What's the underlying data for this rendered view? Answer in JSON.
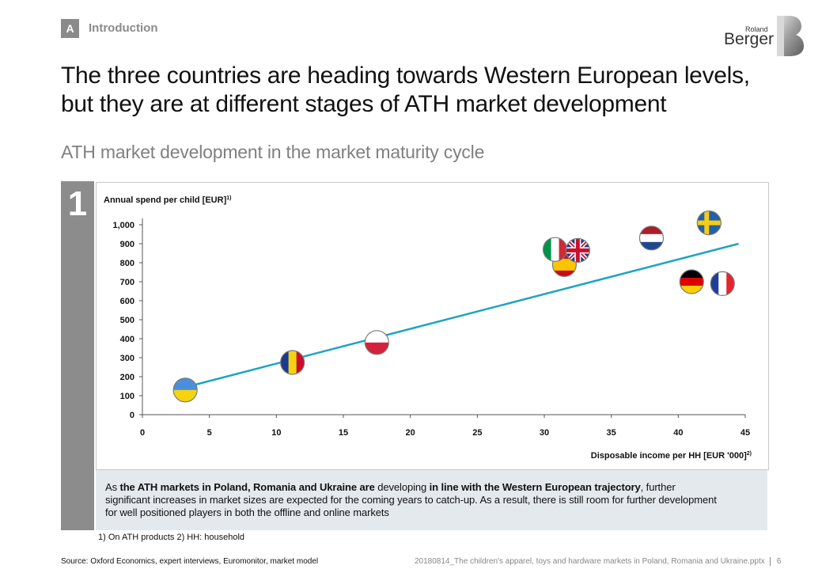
{
  "section": {
    "badge": "A",
    "label": "Introduction"
  },
  "logo": {
    "line1": "Roland",
    "line2": "Berger"
  },
  "headline": {
    "line1": "The three countries are heading towards Western European levels,",
    "line2": "but they are at different stages of ATH market development"
  },
  "subtitle": "ATH market development in the market maturity cycle",
  "sidebar_number": "1",
  "chart_data": {
    "type": "scatter",
    "title": "",
    "ylabel": "Annual spend per child [EUR]",
    "ylabel_sup": "1)",
    "xlabel": "Disposable income per HH [EUR '000]",
    "xlabel_sup": "2)",
    "xlim": [
      0,
      45
    ],
    "ylim": [
      0,
      1000
    ],
    "x_ticks": [
      "0",
      "5",
      "10",
      "15",
      "20",
      "25",
      "30",
      "35",
      "40",
      "45"
    ],
    "y_ticks": [
      "0",
      "100",
      "200",
      "300",
      "400",
      "500",
      "600",
      "700",
      "800",
      "900",
      "1,000"
    ],
    "trend_line": {
      "x": [
        3.5,
        44.5
      ],
      "y": [
        150,
        900
      ],
      "color": "#1fa3c4"
    },
    "points": [
      {
        "country": "Ukraine",
        "x": 3.2,
        "y": 130
      },
      {
        "country": "Romania",
        "x": 11.2,
        "y": 275
      },
      {
        "country": "Poland",
        "x": 17.5,
        "y": 380
      },
      {
        "country": "Spain",
        "x": 31.5,
        "y": 790
      },
      {
        "country": "Italy",
        "x": 30.8,
        "y": 870
      },
      {
        "country": "United Kingdom",
        "x": 32.5,
        "y": 865
      },
      {
        "country": "Netherlands",
        "x": 38.0,
        "y": 930
      },
      {
        "country": "Sweden",
        "x": 42.3,
        "y": 1010
      },
      {
        "country": "Germany",
        "x": 41.0,
        "y": 700
      },
      {
        "country": "France",
        "x": 43.3,
        "y": 690
      }
    ]
  },
  "callout": {
    "t1": "As ",
    "b1": "the ATH markets in Poland, Romania and Ukraine are",
    "t2": " developing ",
    "b2": "in line with the Western European trajectory",
    "t3": ", further significant increases in market sizes are expected for the coming years to catch-up. As a result, there is still room for further development for well positioned players in both the offline and online markets"
  },
  "footnotes": "1) On ATH products   2) HH: household",
  "source": "Source: Oxford Economics, expert interviews, Euromonitor, market model",
  "docref": "20180814_The children's apparel, toys and hardware markets in Poland, Romania and Ukraine.pptx",
  "page_number": "6",
  "colors": {
    "accent": "#1fa3c4",
    "gray": "#8c8c8c",
    "callout_bg": "#e4e9ed"
  }
}
